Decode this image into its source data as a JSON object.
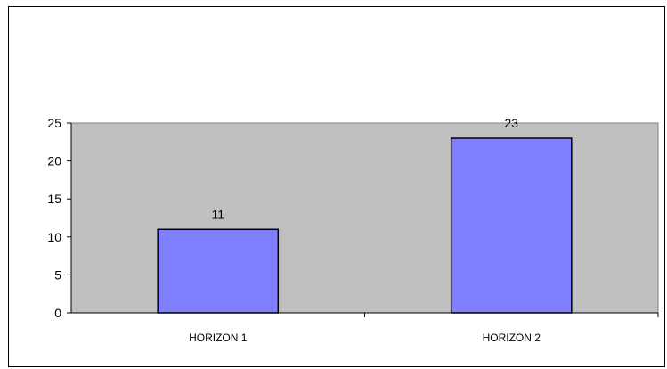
{
  "chart_data": {
    "type": "bar",
    "categories": [
      "HORIZON 1",
      "HORIZON 2"
    ],
    "values": [
      11,
      23
    ],
    "data_labels": [
      "11",
      "23"
    ],
    "ylim": [
      0,
      25
    ],
    "yticks": [
      0,
      5,
      10,
      15,
      20,
      25
    ],
    "title": "",
    "xlabel": "",
    "ylabel": "",
    "grid": false,
    "legend": "none",
    "colors": {
      "bar_fill": "#8080ff",
      "bar_stroke": "#000000",
      "plot_background": "#c0c0c0",
      "axis": "#000000"
    }
  }
}
